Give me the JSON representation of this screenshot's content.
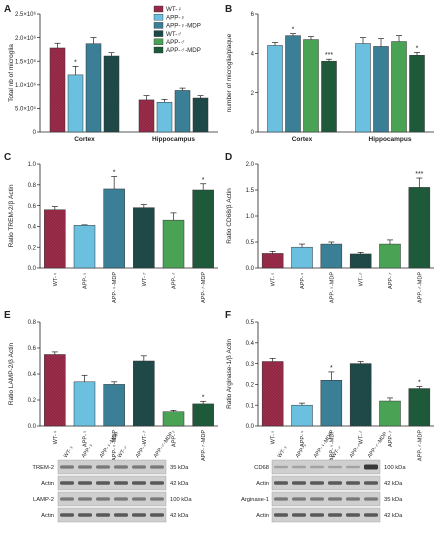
{
  "colors": {
    "wt_f": "#9b2c4a",
    "app_f": "#6bbfdf",
    "app_f_mdp": "#3a7f96",
    "wt_m": "#1f4c4a",
    "app_m": "#4aa354",
    "app_m_mdp": "#1e5a3a"
  },
  "chart_data": [
    {
      "panel": "A",
      "type": "bar",
      "ylabel": "Total nb of microglia",
      "ylim": [
        0,
        2500000
      ],
      "yticks": [
        "0",
        "5.0×10⁵",
        "1.0×10⁶",
        "1.5×10⁶",
        "2.0×10⁶",
        "2.5×10⁶"
      ],
      "yticks_values": [
        0,
        500000,
        1000000,
        1500000,
        2000000,
        2500000
      ],
      "categories": [
        "Cortex",
        "Hippocampus"
      ],
      "legend": {
        "placement": "top-right",
        "entries": [
          "WT-♀",
          "APP-♀",
          "APP-♀-MDP",
          "WT-♂",
          "APP-♂",
          "APP-♂-MDP"
        ]
      },
      "series": [
        {
          "name": "WT-♀",
          "values": [
            1780000,
            680000
          ],
          "errors": [
            100000,
            90000
          ],
          "sig": [
            "",
            ""
          ]
        },
        {
          "name": "APP-♀",
          "values": [
            1210000,
            630000
          ],
          "errors": [
            180000,
            60000
          ],
          "sig": [
            "*",
            ""
          ]
        },
        {
          "name": "APP-♀-MDP",
          "values": [
            1870000,
            880000
          ],
          "errors": [
            130000,
            50000
          ],
          "sig": [
            "",
            ""
          ]
        },
        {
          "name": "WT-♂",
          "values": [
            1610000,
            720000
          ],
          "errors": [
            70000,
            50000
          ],
          "sig": [
            "",
            ""
          ]
        }
      ]
    },
    {
      "panel": "B",
      "type": "bar",
      "ylabel": "number of microglia/plaque",
      "ylim": [
        0,
        6
      ],
      "yticks": [
        "0",
        "2",
        "4",
        "6"
      ],
      "yticks_values": [
        0,
        2,
        4,
        6
      ],
      "categories": [
        "Cortex",
        "Hippocampus"
      ],
      "series": [
        {
          "name": "APP-♀",
          "values": [
            4.4,
            4.5
          ],
          "errors": [
            0.15,
            0.3
          ],
          "sig": [
            "",
            ""
          ]
        },
        {
          "name": "APP-♀-MDP",
          "values": [
            4.9,
            4.35
          ],
          "errors": [
            0.1,
            0.4
          ],
          "sig": [
            "*",
            ""
          ]
        },
        {
          "name": "APP-♂",
          "values": [
            4.7,
            4.6
          ],
          "errors": [
            0.15,
            0.3
          ],
          "sig": [
            "",
            ""
          ]
        },
        {
          "name": "APP-♂-MDP",
          "values": [
            3.6,
            3.9
          ],
          "errors": [
            0.1,
            0.15
          ],
          "sig": [
            "***",
            "*"
          ]
        }
      ]
    },
    {
      "panel": "C",
      "type": "bar",
      "ylabel": "Ratio TREM-2/β Actin",
      "ylim": [
        0,
        1.0
      ],
      "yticks": [
        "0.0",
        "0.2",
        "0.4",
        "0.6",
        "0.8",
        "1.0"
      ],
      "yticks_values": [
        0,
        0.2,
        0.4,
        0.6,
        0.8,
        1.0
      ],
      "categories": [
        "WT-♀",
        "APP-♀",
        "APP-♀-MDP",
        "WT-♂",
        "APP-♂",
        "APP-♂-MDP"
      ],
      "values": [
        0.56,
        0.41,
        0.76,
        0.58,
        0.46,
        0.75
      ],
      "errors": [
        0.03,
        0.005,
        0.12,
        0.03,
        0.07,
        0.06
      ],
      "sig": [
        "",
        "",
        "*",
        "",
        "",
        "*"
      ]
    },
    {
      "panel": "D",
      "type": "bar",
      "ylabel": "Ratio CD68/β Actin",
      "ylim": [
        0,
        2.0
      ],
      "yticks": [
        "0.0",
        "0.5",
        "1.0",
        "1.5",
        "2.0"
      ],
      "yticks_values": [
        0,
        0.5,
        1.0,
        1.5,
        2.0
      ],
      "categories": [
        "WT-♀",
        "APP-♀",
        "APP-♀-MDP",
        "WT-♂",
        "APP-♂",
        "APP-♂-MDP"
      ],
      "values": [
        0.28,
        0.4,
        0.46,
        0.27,
        0.46,
        1.55
      ],
      "errors": [
        0.04,
        0.06,
        0.04,
        0.03,
        0.08,
        0.18
      ],
      "sig": [
        "",
        "",
        "",
        "",
        "",
        "***"
      ]
    },
    {
      "panel": "E",
      "type": "bar",
      "ylabel": "Ratio LAMP-2/β Actin",
      "ylim": [
        0,
        0.8
      ],
      "yticks": [
        "0.0",
        "0.2",
        "0.4",
        "0.6",
        "0.8"
      ],
      "yticks_values": [
        0,
        0.2,
        0.4,
        0.6,
        0.8
      ],
      "categories": [
        "WT-♀",
        "APP-♀",
        "APP-♀-MDP",
        "WT-♂",
        "APP-♂",
        "APP-♂-MDP"
      ],
      "values": [
        0.55,
        0.34,
        0.32,
        0.5,
        0.11,
        0.17
      ],
      "errors": [
        0.02,
        0.05,
        0.02,
        0.04,
        0.01,
        0.02
      ],
      "sig": [
        "",
        "",
        "",
        "",
        "",
        "*"
      ]
    },
    {
      "panel": "F",
      "type": "bar",
      "ylabel": "Ratio Arginase-1/β Actin",
      "ylim": [
        0,
        0.5
      ],
      "yticks": [
        "0.0",
        "0.1",
        "0.2",
        "0.3",
        "0.4",
        "0.5"
      ],
      "yticks_values": [
        0,
        0.1,
        0.2,
        0.3,
        0.4,
        0.5
      ],
      "categories": [
        "WT-♀",
        "APP-♀",
        "APP-♀-MDP",
        "WT-♂",
        "APP-♂",
        "APP-♂-MDP"
      ],
      "values": [
        0.31,
        0.1,
        0.22,
        0.3,
        0.12,
        0.18
      ],
      "errors": [
        0.015,
        0.01,
        0.04,
        0.01,
        0.015,
        0.01
      ],
      "sig": [
        "",
        "",
        "*",
        "",
        "",
        "*"
      ]
    }
  ],
  "blots": [
    {
      "lanes": [
        "WT-♀",
        "APP-♀",
        "APP-♀-MDP",
        "WT-♂",
        "APP-♂",
        "APP-♂-MDP"
      ],
      "rows": [
        {
          "label": "TREM-2",
          "kda": "35 kDa"
        },
        {
          "label": "Actin",
          "kda": "42 kDa"
        },
        {
          "label": "LAMP-2",
          "kda": "100 kDa"
        },
        {
          "label": "Actin",
          "kda": "42 kDa"
        }
      ]
    },
    {
      "lanes": [
        "WT-♀",
        "APP-♀",
        "APP-♀-MDP",
        "WT-♂",
        "APP-♂",
        "APP-♂-MDP"
      ],
      "rows": [
        {
          "label": "CD68",
          "kda": "100 kDa"
        },
        {
          "label": "Actin",
          "kda": "42 kDa"
        },
        {
          "label": "Arginase-1",
          "kda": "35 kDa"
        },
        {
          "label": "Actin",
          "kda": "42 kDa"
        }
      ]
    }
  ]
}
